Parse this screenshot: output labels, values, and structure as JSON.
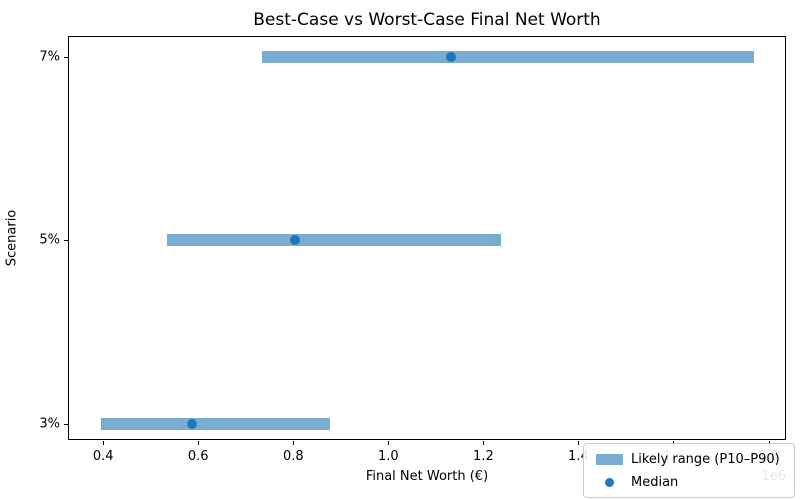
{
  "chart_data": {
    "type": "range_bar",
    "title": "Best-Case vs Worst-Case Final Net Worth",
    "xlabel": "Final Net Worth (€)",
    "ylabel": "Scenario",
    "x_offset_label": "1e6",
    "categories": [
      "7%",
      "5%",
      "3%"
    ],
    "series": [
      {
        "name": "Likely range (P10–P90)",
        "p10": [
          735000,
          535000,
          396000
        ],
        "p90": [
          1770000,
          1238000,
          877000
        ]
      },
      {
        "name": "Median",
        "values": [
          1131000,
          804000,
          586000
        ]
      }
    ],
    "rows": [
      {
        "scenario": "7%",
        "p10": 735000,
        "median": 1131000,
        "p90": 1770000
      },
      {
        "scenario": "5%",
        "p10": 535000,
        "median": 804000,
        "p90": 1238000
      },
      {
        "scenario": "3%",
        "p10": 396000,
        "median": 586000,
        "p90": 877000
      }
    ],
    "xlim": [
      328000,
      1839000
    ],
    "xticks": [
      400000,
      600000,
      800000,
      1000000,
      1200000,
      1400000,
      1600000,
      1800000
    ],
    "xtick_labels": [
      "0.4",
      "0.6",
      "0.8",
      "1.0",
      "1.2",
      "1.4",
      "1.6",
      "1.8"
    ],
    "grid": false,
    "legend": {
      "position": "lower right",
      "entries": [
        {
          "label": "Likely range (P10–P90)",
          "marker": "bar-swatch"
        },
        {
          "label": "Median",
          "marker": "dot"
        }
      ]
    },
    "colors": {
      "range_bar": "#79ADD2",
      "median_dot": "#1F77B4",
      "spine": "#000000",
      "background": "#FFFFFF"
    }
  }
}
